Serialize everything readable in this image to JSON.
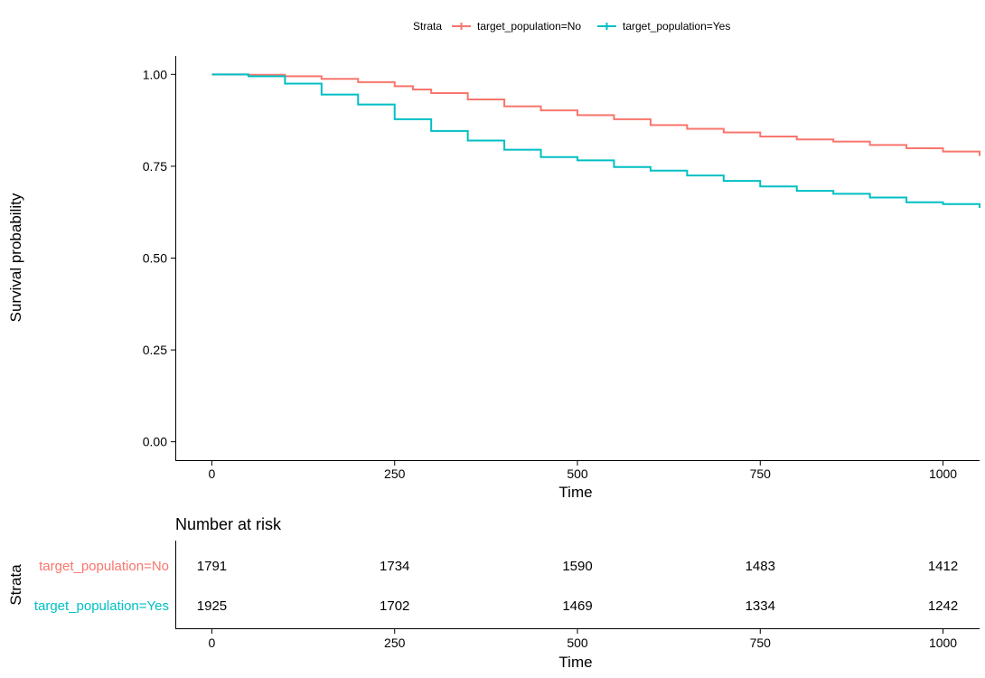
{
  "chart_data": [
    {
      "type": "line",
      "step": true,
      "legend": {
        "title": "Strata",
        "position": "top"
      },
      "xlabel": "Time",
      "ylabel": "Survival probability",
      "xlim": [
        -50,
        1050
      ],
      "ylim": [
        -0.05,
        1.05
      ],
      "xticks": [
        0,
        250,
        500,
        750,
        1000
      ],
      "yticks": [
        0.0,
        0.25,
        0.5,
        0.75,
        1.0
      ],
      "ytick_labels": [
        "0.00",
        "0.25",
        "0.50",
        "0.75",
        "1.00"
      ],
      "grid": false,
      "series": [
        {
          "name": "target_population=No",
          "color": "#F8766D",
          "x": [
            0,
            50,
            100,
            150,
            200,
            250,
            275,
            300,
            350,
            400,
            450,
            500,
            550,
            600,
            650,
            700,
            750,
            800,
            850,
            900,
            950,
            1000,
            1050
          ],
          "y": [
            1.0,
            0.999,
            0.995,
            0.988,
            0.979,
            0.968,
            0.959,
            0.949,
            0.932,
            0.913,
            0.902,
            0.889,
            0.878,
            0.862,
            0.852,
            0.842,
            0.831,
            0.823,
            0.817,
            0.808,
            0.799,
            0.79,
            0.778
          ]
        },
        {
          "name": "target_population=Yes",
          "color": "#00BFC4",
          "x": [
            0,
            50,
            100,
            150,
            200,
            250,
            300,
            350,
            400,
            450,
            500,
            550,
            600,
            650,
            700,
            750,
            800,
            850,
            900,
            950,
            1000,
            1050
          ],
          "y": [
            1.0,
            0.995,
            0.975,
            0.945,
            0.918,
            0.878,
            0.846,
            0.82,
            0.795,
            0.775,
            0.766,
            0.748,
            0.738,
            0.725,
            0.71,
            0.695,
            0.683,
            0.675,
            0.665,
            0.652,
            0.647,
            0.637
          ]
        }
      ]
    },
    {
      "type": "table",
      "title": "Number at risk",
      "ylabel": "Strata",
      "xlabel": "Time",
      "xlim": [
        -50,
        1050
      ],
      "xticks": [
        0,
        250,
        500,
        750,
        1000
      ],
      "rows": [
        {
          "label": "target_population=No",
          "color": "#F8766D",
          "values": [
            1791,
            1734,
            1590,
            1483,
            1412
          ]
        },
        {
          "label": "target_population=Yes",
          "color": "#00BFC4",
          "values": [
            1925,
            1702,
            1469,
            1334,
            1242
          ]
        }
      ]
    }
  ]
}
